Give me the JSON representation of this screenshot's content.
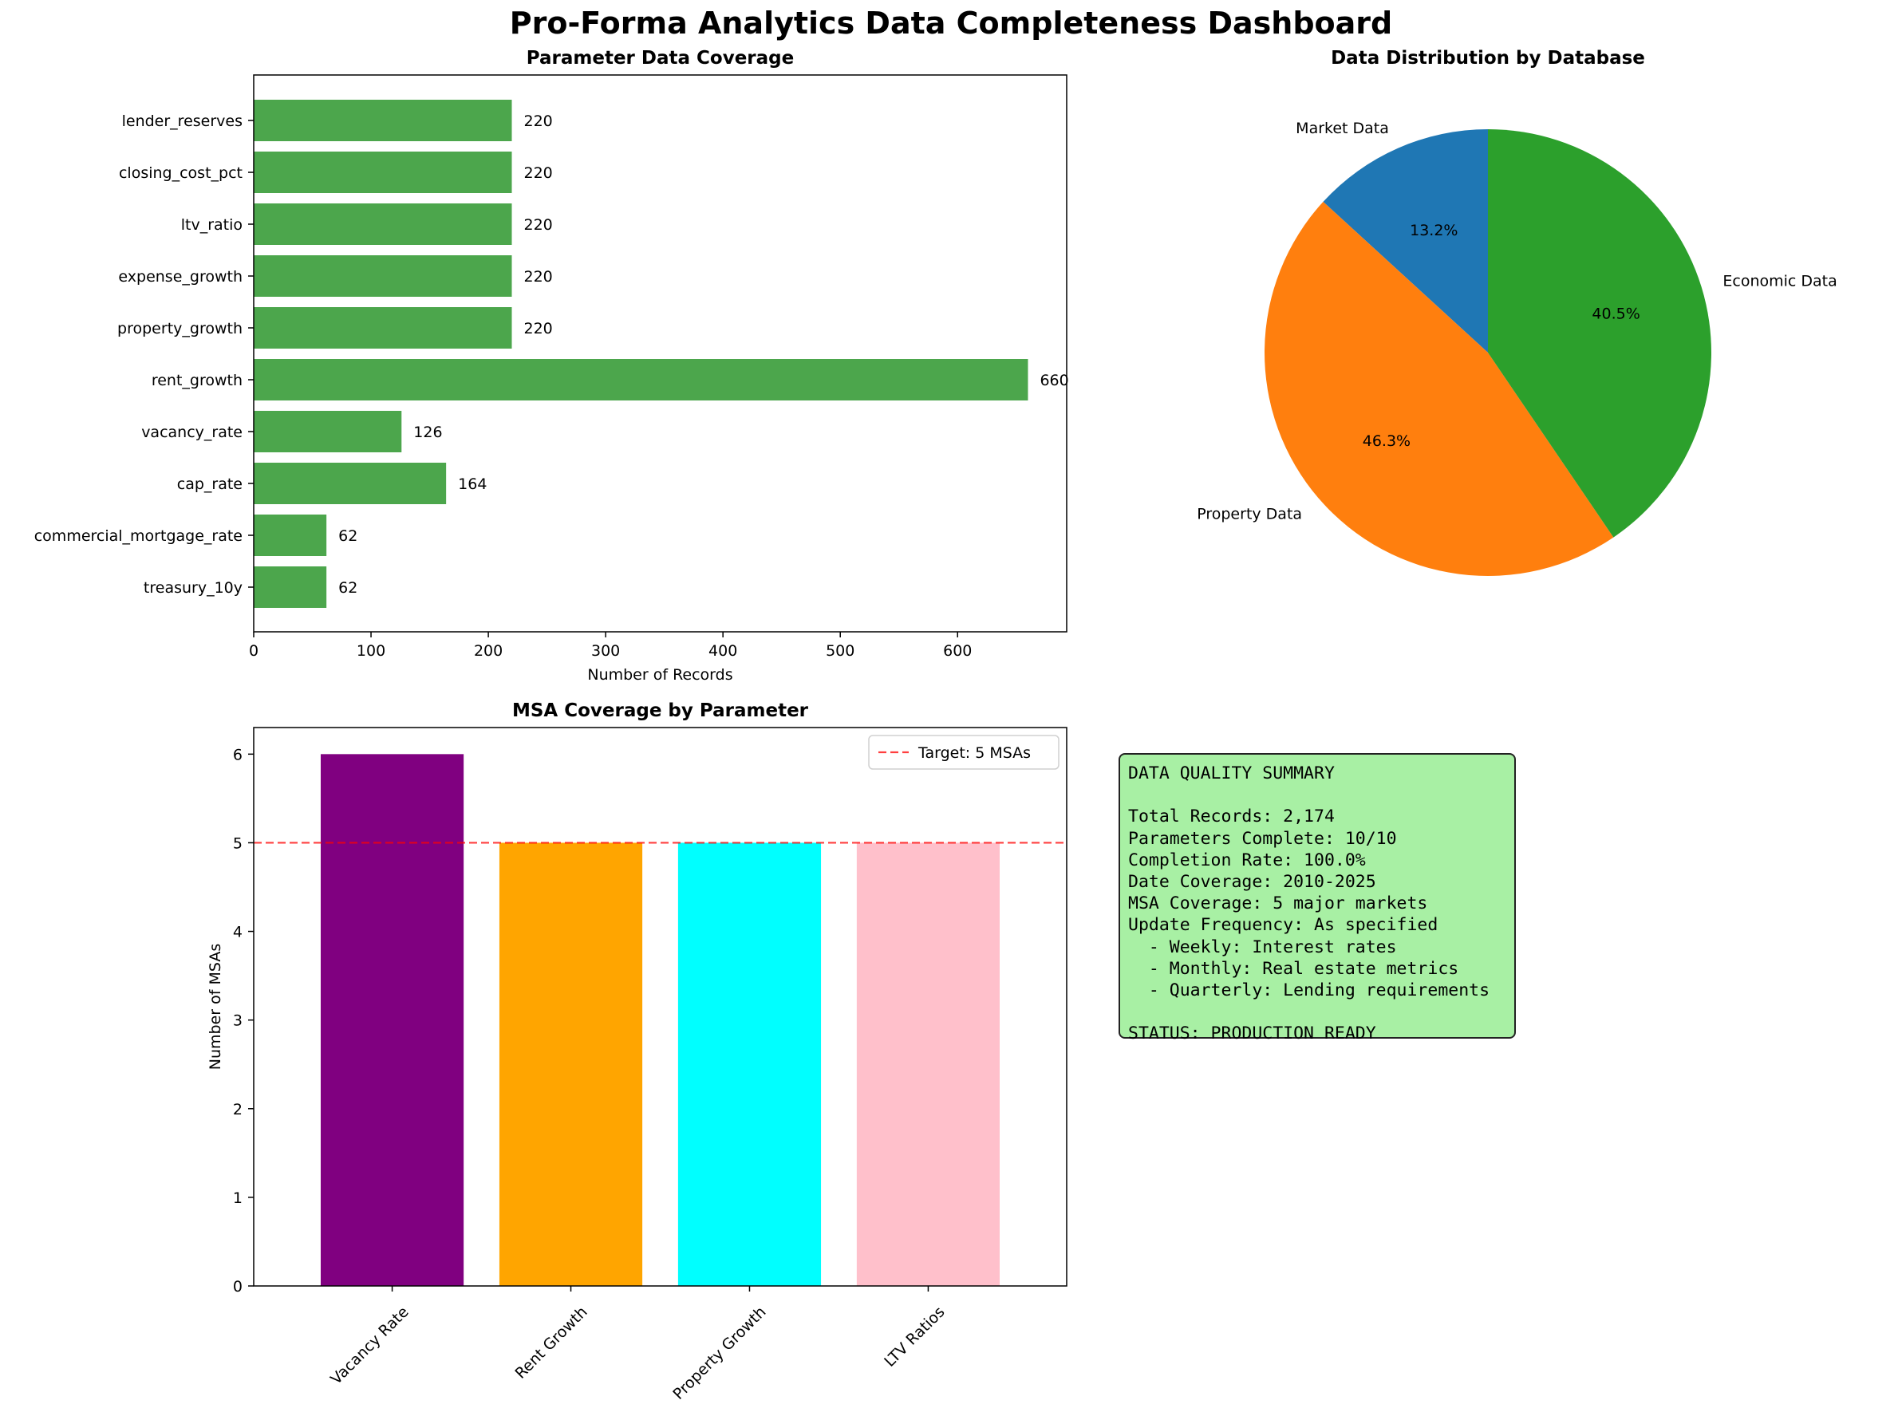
{
  "figure_title": "Pro-Forma Analytics Data Completeness Dashboard",
  "colors": {
    "coverage_bar": "#4ca64c",
    "pie": [
      "#1f77b4",
      "#ff7f0e",
      "#2ca02c"
    ],
    "msa_bars": [
      "#800080",
      "#ffa500",
      "#00ffff",
      "#ffc0cb"
    ],
    "target_line": "#ff0000",
    "summary_bg": "#a8f0a4"
  },
  "chart_data": [
    {
      "type": "bar",
      "orientation": "horizontal",
      "title": "Parameter Data Coverage",
      "xlabel": "Number of Records",
      "categories": [
        "lender_reserves",
        "closing_cost_pct",
        "ltv_ratio",
        "expense_growth",
        "property_growth",
        "rent_growth",
        "vacancy_rate",
        "cap_rate",
        "commercial_mortgage_rate",
        "treasury_10y"
      ],
      "values": [
        220,
        220,
        220,
        220,
        220,
        660,
        126,
        164,
        62,
        62
      ],
      "xlim": [
        0,
        693
      ],
      "xticks": [
        0,
        100,
        200,
        300,
        400,
        500,
        600
      ]
    },
    {
      "type": "pie",
      "title": "Data Distribution by Database",
      "labels": [
        "Market Data",
        "Property Data",
        "Economic Data"
      ],
      "values": [
        13.2,
        46.3,
        40.5
      ],
      "pct_labels": [
        "13.2%",
        "46.3%",
        "40.5%"
      ]
    },
    {
      "type": "bar",
      "title": "MSA Coverage by Parameter",
      "ylabel": "Number of MSAs",
      "categories": [
        "Vacancy Rate",
        "Rent Growth",
        "Property Growth",
        "LTV Ratios"
      ],
      "values": [
        6,
        5,
        5,
        5
      ],
      "ylim": [
        0,
        6.3
      ],
      "yticks": [
        0,
        1,
        2,
        3,
        4,
        5,
        6
      ],
      "target": {
        "value": 5,
        "label": "Target: 5 MSAs"
      }
    }
  ],
  "summary": {
    "lines": [
      "DATA QUALITY SUMMARY",
      "",
      "Total Records: 2,174",
      "Parameters Complete: 10/10",
      "Completion Rate: 100.0%",
      "Date Coverage: 2010-2025",
      "MSA Coverage: 5 major markets",
      "Update Frequency: As specified",
      "  - Weekly: Interest rates",
      "  - Monthly: Real estate metrics",
      "  - Quarterly: Lending requirements",
      "",
      "STATUS: PRODUCTION READY"
    ]
  }
}
